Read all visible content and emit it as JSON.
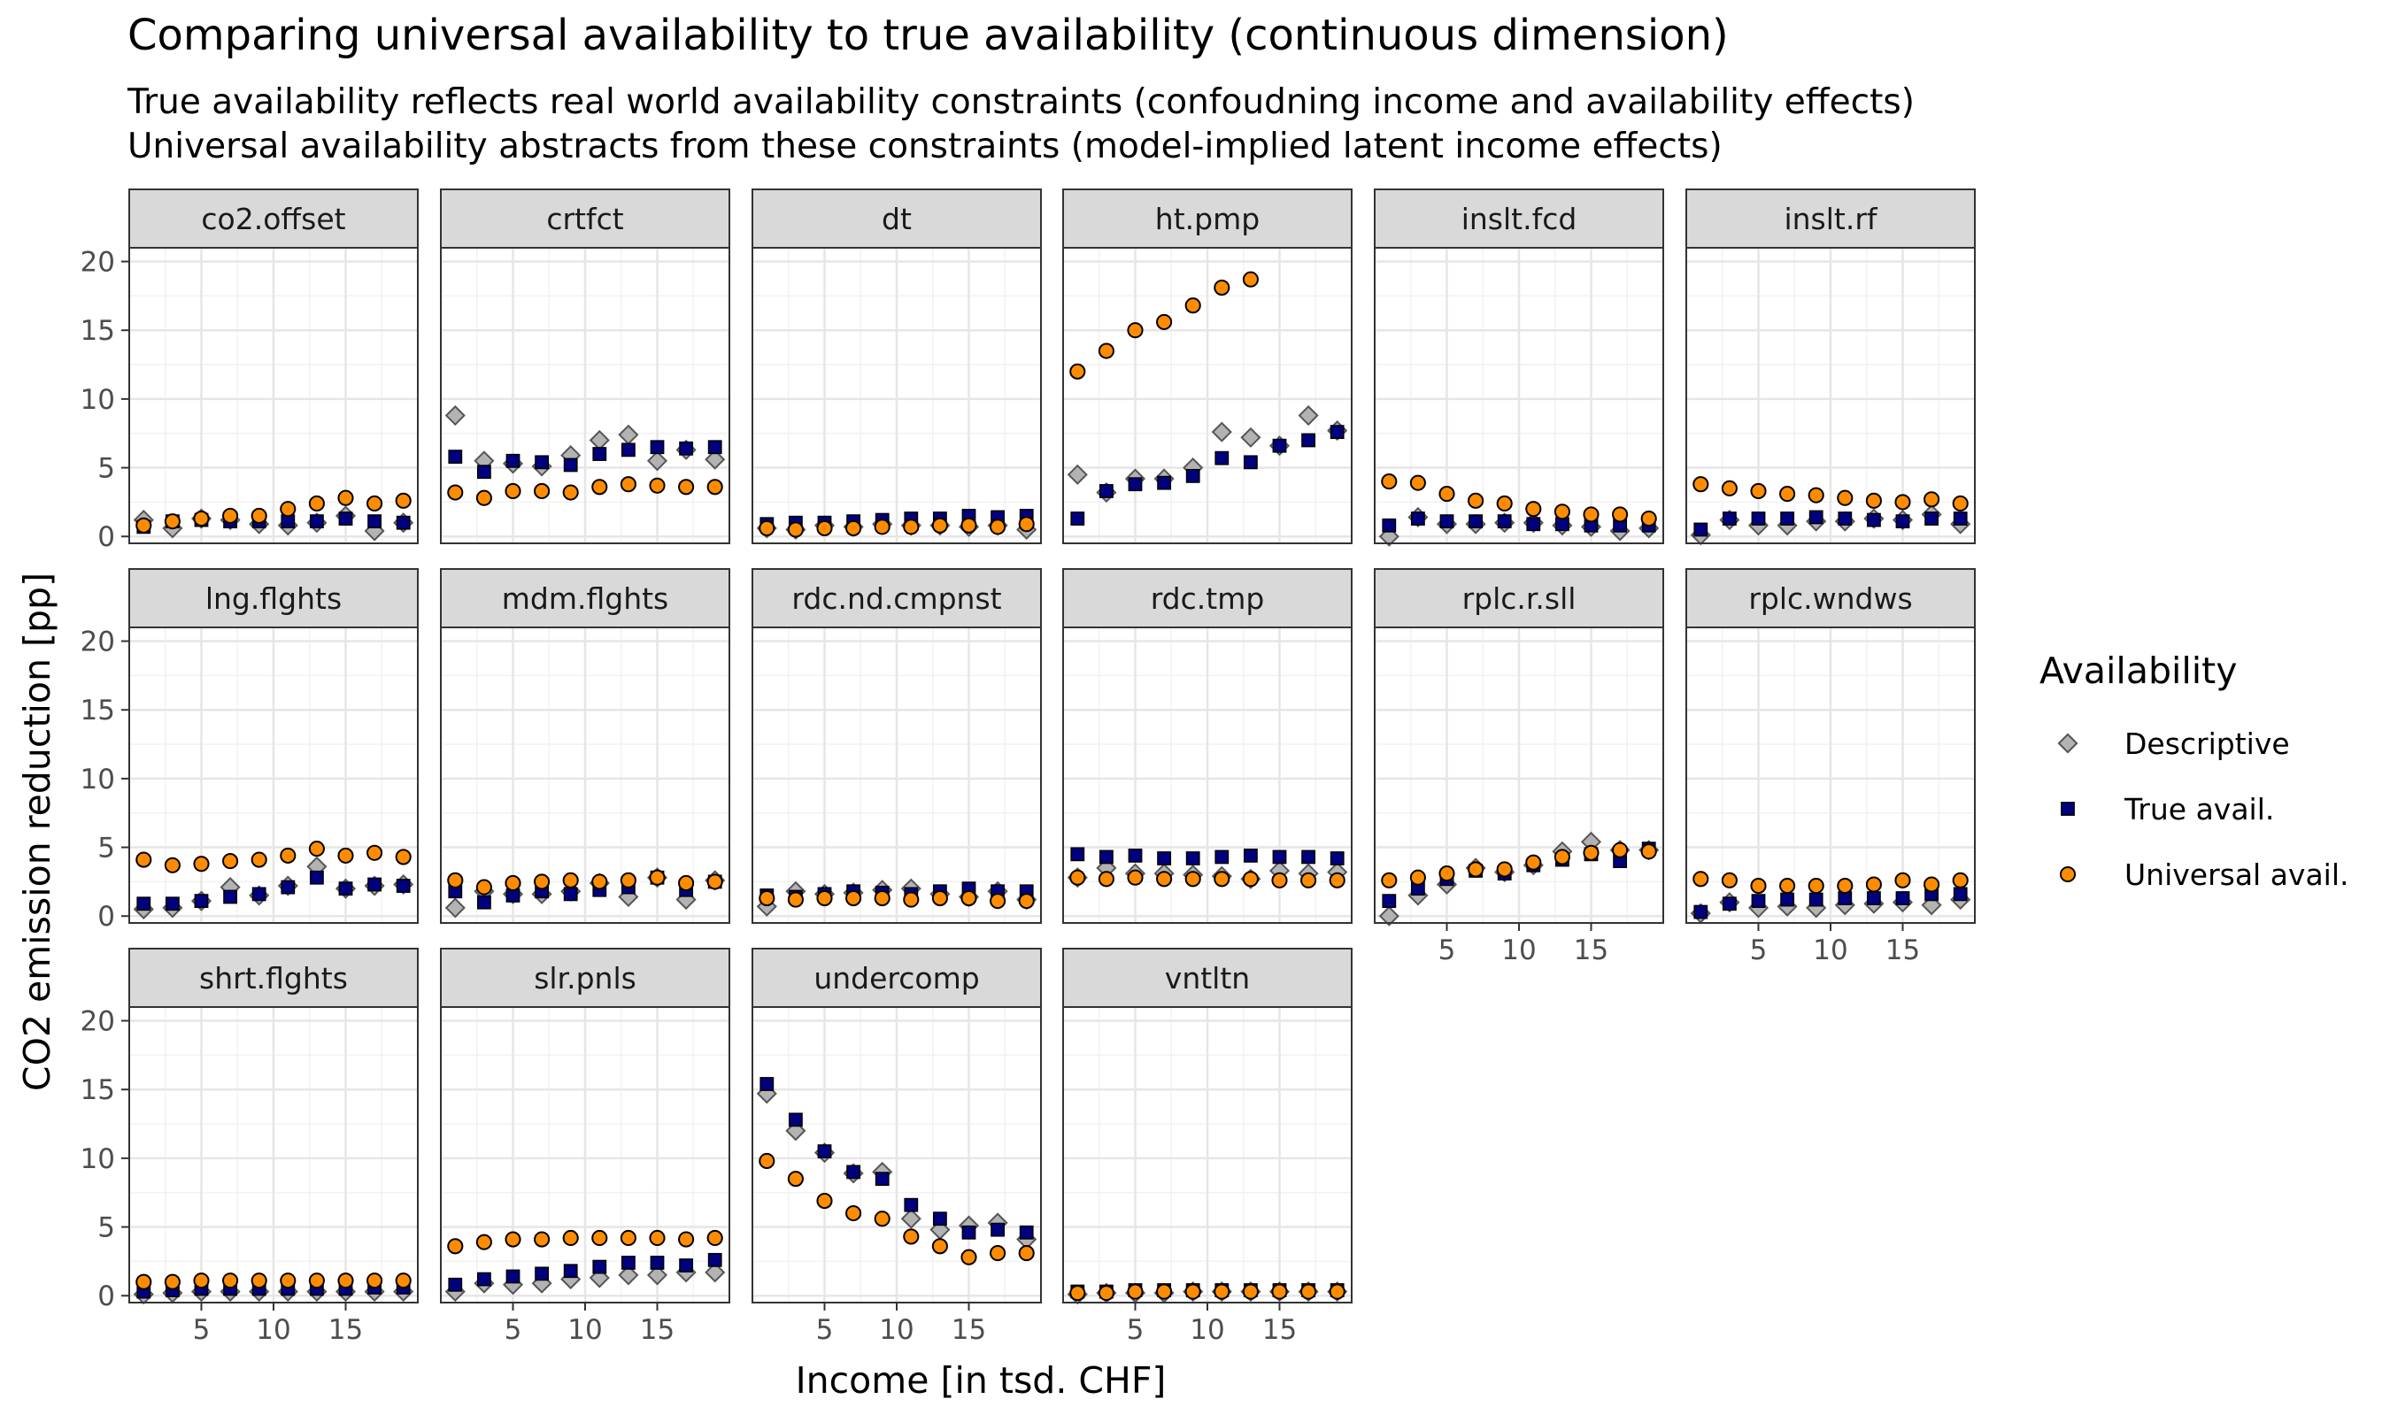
{
  "chart_data": {
    "type": "scatter",
    "title": "Comparing universal availability to true availability (continuous dimension)",
    "subtitle_lines": [
      "True availability reflects real world availability constraints (confoudning income and availability effects)",
      "Universal availability abstracts from these constraints (model-implied latent income effects)"
    ],
    "xlabel": "Income [in tsd. CHF]",
    "ylabel": "CO2 emission reduction [pp]",
    "xlim": [
      0,
      20
    ],
    "ylim": [
      -0.5,
      21
    ],
    "x_ticks": [
      5,
      10,
      15
    ],
    "y_ticks": [
      0,
      5,
      10,
      15,
      20
    ],
    "grid": true,
    "legend": {
      "title": "Availability",
      "position": "right",
      "entries": [
        {
          "key": "descriptive",
          "label": "Descriptive",
          "shape": "diamond",
          "fill": "#a6a6a6",
          "stroke": "#555555"
        },
        {
          "key": "true",
          "label": "True avail.",
          "shape": "square",
          "fill": "#00007f",
          "stroke": "#000000"
        },
        {
          "key": "universal",
          "label": "Universal avail.",
          "shape": "circle",
          "fill": "#ff8c00",
          "stroke": "#000000"
        }
      ]
    },
    "x": [
      1,
      3,
      5,
      7,
      9,
      11,
      13,
      15,
      17,
      19
    ],
    "panels": [
      {
        "name": "co2.offset",
        "descriptive": [
          1.2,
          0.6,
          1.3,
          1.2,
          0.9,
          0.8,
          1.0,
          1.5,
          0.4,
          1.0
        ],
        "true": [
          0.7,
          1.1,
          1.2,
          1.1,
          1.1,
          1.1,
          1.1,
          1.3,
          1.1,
          1.0
        ],
        "universal": [
          0.8,
          1.1,
          1.3,
          1.5,
          1.5,
          2.0,
          2.4,
          2.8,
          2.4,
          2.6
        ]
      },
      {
        "name": "crtfct",
        "descriptive": [
          8.8,
          5.5,
          5.3,
          5.1,
          5.9,
          7.0,
          7.4,
          5.5,
          6.3,
          5.6
        ],
        "true": [
          5.8,
          4.7,
          5.5,
          5.4,
          5.2,
          6.0,
          6.3,
          6.5,
          6.4,
          6.5
        ],
        "universal": [
          3.2,
          2.8,
          3.3,
          3.3,
          3.2,
          3.6,
          3.8,
          3.7,
          3.6,
          3.6
        ]
      },
      {
        "name": "dt",
        "descriptive": [
          0.6,
          0.5,
          0.8,
          0.7,
          0.9,
          0.8,
          0.8,
          0.7,
          0.8,
          0.5
        ],
        "true": [
          0.9,
          1.0,
          1.0,
          1.1,
          1.2,
          1.3,
          1.3,
          1.5,
          1.4,
          1.5
        ],
        "universal": [
          0.6,
          0.5,
          0.6,
          0.6,
          0.7,
          0.7,
          0.8,
          0.8,
          0.7,
          0.9
        ]
      },
      {
        "name": "ht.pmp",
        "descriptive": [
          4.5,
          3.2,
          4.2,
          4.2,
          5.0,
          7.6,
          7.2,
          6.6,
          8.8,
          7.7
        ],
        "true": [
          1.3,
          3.3,
          3.8,
          3.9,
          4.4,
          5.7,
          5.4,
          6.6,
          7.0,
          7.6
        ],
        "universal": [
          12.0,
          13.5,
          15.0,
          15.6,
          16.8,
          18.1,
          18.7,
          null,
          null,
          null
        ]
      },
      {
        "name": "inslt.fcd",
        "descriptive": [
          0.0,
          1.4,
          0.9,
          0.9,
          1.0,
          1.0,
          0.8,
          0.7,
          0.4,
          0.6
        ],
        "true": [
          0.8,
          1.3,
          1.1,
          1.1,
          1.1,
          0.9,
          0.9,
          0.8,
          0.8,
          0.8
        ],
        "universal": [
          4.0,
          3.9,
          3.1,
          2.6,
          2.4,
          2.0,
          1.8,
          1.6,
          1.6,
          1.3
        ]
      },
      {
        "name": "inslt.rf",
        "descriptive": [
          0.1,
          1.2,
          0.8,
          0.8,
          1.1,
          1.1,
          1.3,
          1.2,
          1.6,
          0.9
        ],
        "true": [
          0.5,
          1.3,
          1.3,
          1.3,
          1.4,
          1.3,
          1.2,
          1.1,
          1.3,
          1.3
        ],
        "universal": [
          3.8,
          3.5,
          3.3,
          3.1,
          3.0,
          2.8,
          2.6,
          2.5,
          2.7,
          2.4
        ]
      },
      {
        "name": "lng.flghts",
        "descriptive": [
          0.5,
          0.6,
          1.1,
          2.1,
          1.5,
          2.2,
          3.6,
          2.0,
          2.2,
          2.3
        ],
        "true": [
          0.9,
          0.9,
          1.1,
          1.4,
          1.6,
          2.1,
          2.8,
          2.0,
          2.3,
          2.2
        ],
        "universal": [
          4.1,
          3.7,
          3.8,
          4.0,
          4.1,
          4.4,
          4.9,
          4.4,
          4.6,
          4.3
        ]
      },
      {
        "name": "mdm.flghts",
        "descriptive": [
          0.6,
          1.8,
          1.6,
          1.6,
          1.8,
          2.4,
          1.4,
          2.8,
          1.2,
          2.6
        ],
        "true": [
          1.8,
          1.0,
          1.5,
          1.8,
          1.6,
          1.9,
          2.1,
          2.8,
          1.9,
          2.5
        ],
        "universal": [
          2.6,
          2.1,
          2.4,
          2.5,
          2.6,
          2.5,
          2.6,
          2.8,
          2.4,
          2.5
        ]
      },
      {
        "name": "rdc.nd.cmpnst",
        "descriptive": [
          0.7,
          1.8,
          1.6,
          1.7,
          1.9,
          2.0,
          1.6,
          1.4,
          1.8,
          1.2
        ],
        "true": [
          1.5,
          1.4,
          1.6,
          1.8,
          1.7,
          1.6,
          1.8,
          2.0,
          1.8,
          1.8
        ],
        "universal": [
          1.3,
          1.2,
          1.3,
          1.3,
          1.3,
          1.2,
          1.3,
          1.3,
          1.1,
          1.1
        ]
      },
      {
        "name": "rdc.tmp",
        "descriptive": [
          2.8,
          3.5,
          3.1,
          3.1,
          3.0,
          2.9,
          2.7,
          3.3,
          3.1,
          3.2
        ],
        "true": [
          4.5,
          4.3,
          4.4,
          4.2,
          4.2,
          4.3,
          4.4,
          4.3,
          4.3,
          4.2
        ],
        "universal": [
          2.8,
          2.7,
          2.8,
          2.7,
          2.7,
          2.7,
          2.7,
          2.6,
          2.6,
          2.6
        ]
      },
      {
        "name": "rplc.r.sll",
        "descriptive": [
          0.0,
          1.5,
          2.3,
          3.5,
          3.2,
          3.7,
          4.7,
          5.4,
          4.8,
          4.8
        ],
        "true": [
          1.1,
          2.0,
          2.7,
          3.3,
          3.1,
          3.7,
          4.1,
          4.5,
          4.0,
          4.9
        ],
        "universal": [
          2.6,
          2.8,
          3.1,
          3.4,
          3.4,
          3.9,
          4.3,
          4.6,
          4.8,
          4.7
        ]
      },
      {
        "name": "rplc.wndws",
        "descriptive": [
          0.2,
          1.0,
          0.6,
          0.7,
          0.6,
          0.8,
          0.9,
          1.0,
          0.8,
          1.2
        ],
        "true": [
          0.3,
          0.9,
          1.1,
          1.2,
          1.2,
          1.3,
          1.3,
          1.3,
          1.6,
          1.6
        ],
        "universal": [
          2.7,
          2.6,
          2.2,
          2.2,
          2.2,
          2.2,
          2.3,
          2.6,
          2.3,
          2.6
        ]
      },
      {
        "name": "shrt.flghts",
        "descriptive": [
          0.1,
          0.2,
          0.3,
          0.3,
          0.3,
          0.3,
          0.3,
          0.3,
          0.3,
          0.3
        ],
        "true": [
          0.3,
          0.4,
          0.5,
          0.5,
          0.5,
          0.5,
          0.5,
          0.5,
          0.6,
          0.6
        ],
        "universal": [
          1.0,
          1.0,
          1.1,
          1.1,
          1.1,
          1.1,
          1.1,
          1.1,
          1.1,
          1.1
        ]
      },
      {
        "name": "slr.pnls",
        "descriptive": [
          0.3,
          0.9,
          0.8,
          0.9,
          1.2,
          1.3,
          1.5,
          1.5,
          1.7,
          1.7
        ],
        "true": [
          0.8,
          1.2,
          1.4,
          1.6,
          1.8,
          2.1,
          2.4,
          2.4,
          2.2,
          2.6
        ],
        "universal": [
          3.6,
          3.9,
          4.1,
          4.1,
          4.2,
          4.2,
          4.2,
          4.2,
          4.1,
          4.2
        ]
      },
      {
        "name": "undercomp",
        "descriptive": [
          14.7,
          12.0,
          10.4,
          8.9,
          9.0,
          5.6,
          4.8,
          5.1,
          5.3,
          4.1
        ],
        "true": [
          15.4,
          12.8,
          10.5,
          9.0,
          8.5,
          6.6,
          5.6,
          4.6,
          4.8,
          4.6
        ],
        "universal": [
          9.8,
          8.5,
          6.9,
          6.0,
          5.6,
          4.3,
          3.6,
          2.8,
          3.1,
          3.1
        ]
      },
      {
        "name": "vntltn",
        "descriptive": [
          0.1,
          0.2,
          0.2,
          0.2,
          0.3,
          0.3,
          0.3,
          0.3,
          0.3,
          0.3
        ],
        "true": [
          0.3,
          0.3,
          0.4,
          0.4,
          0.4,
          0.4,
          0.4,
          0.4,
          0.4,
          0.4
        ],
        "universal": [
          0.2,
          0.2,
          0.3,
          0.3,
          0.3,
          0.3,
          0.3,
          0.3,
          0.3,
          0.3
        ]
      }
    ]
  }
}
